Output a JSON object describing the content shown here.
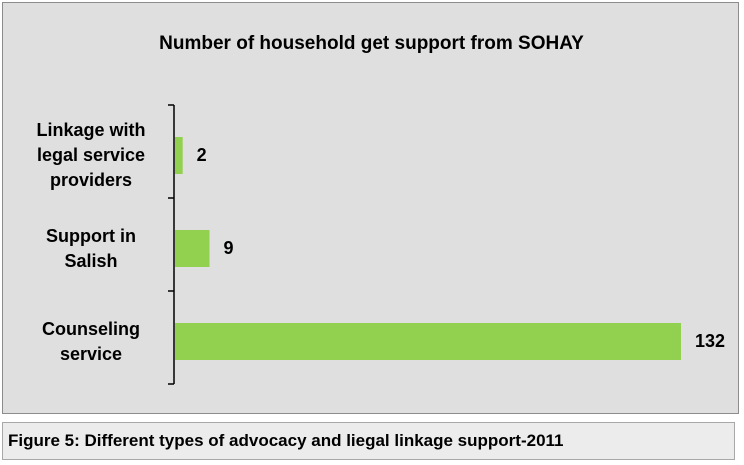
{
  "chart_data": {
    "type": "bar",
    "orientation": "horizontal",
    "title": "Number of household get support from SOHAY",
    "categories": [
      "Linkage with\nlegal service\nproviders",
      "Support in\nSalish",
      "Counseling\nservice"
    ],
    "values": [
      2,
      9,
      132
    ],
    "xlim": [
      0,
      132
    ],
    "bar_color": "#92d050",
    "grid": false,
    "legend": "none",
    "data_labels": true
  },
  "caption": "Figure 5: Different types of advocacy and liegal linkage support-2011"
}
